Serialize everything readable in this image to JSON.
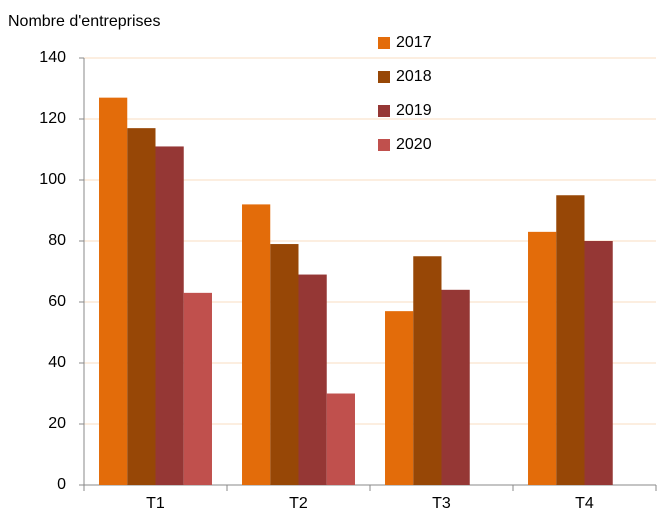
{
  "chart_data": {
    "type": "bar",
    "y_axis_label": "Nombre d'entreprises",
    "categories": [
      "T1",
      "T2",
      "T3",
      "T4"
    ],
    "series": [
      {
        "name": "2017",
        "color": "#e36c0a",
        "values": [
          127,
          92,
          57,
          83
        ]
      },
      {
        "name": "2018",
        "color": "#974706",
        "values": [
          117,
          79,
          75,
          95
        ]
      },
      {
        "name": "2019",
        "color": "#953735",
        "values": [
          111,
          69,
          64,
          80
        ]
      },
      {
        "name": "2020",
        "color": "#c0504d",
        "values": [
          63,
          30,
          null,
          null
        ]
      }
    ],
    "ylim": [
      0,
      140
    ],
    "yticks": [
      0,
      20,
      40,
      60,
      80,
      100,
      120,
      140
    ],
    "grid": true,
    "legend": "top"
  }
}
